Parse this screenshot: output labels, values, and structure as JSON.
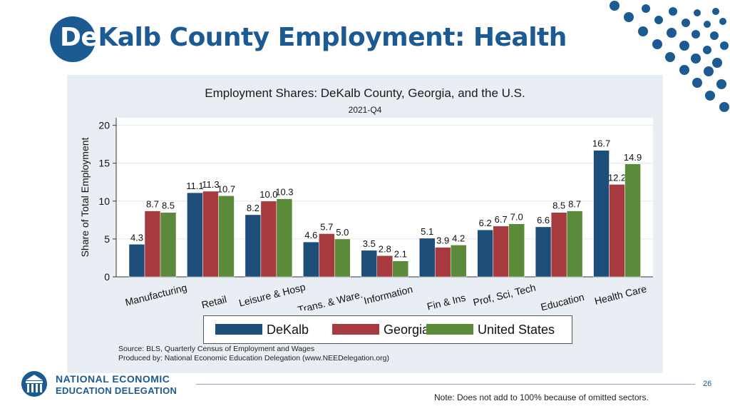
{
  "slide": {
    "title_first": "De",
    "title_rest": "Kalb County Employment: Health",
    "page_number": "26",
    "note": "Note: Does not add to 100% because of omitted sectors.",
    "logo_line1": "NATIONAL ECONOMIC",
    "logo_line2": "EDUCATION DELEGATION",
    "accent_color": "#1b5a93"
  },
  "chart_data": {
    "type": "bar",
    "title": "Employment Shares: DeKalb County, Georgia, and the U.S.",
    "subtitle": "2021-Q4",
    "ylabel": "Share of Total Employment",
    "xlabel": "",
    "ylim": [
      0,
      21
    ],
    "yticks": [
      0,
      5,
      10,
      15,
      20
    ],
    "grid": true,
    "legend_position": "bottom",
    "categories": [
      "Manufacturing",
      "Retail",
      "Leisure & Hosp",
      "Trans. & Ware.",
      "Information",
      "Fin & Ins",
      "Prof, Sci, Tech",
      "Education",
      "Health Care"
    ],
    "series": [
      {
        "name": "DeKalb",
        "color": "#1d4e79",
        "values": [
          4.3,
          11.1,
          8.2,
          4.6,
          3.5,
          5.1,
          6.2,
          6.6,
          16.7
        ]
      },
      {
        "name": "Georgia",
        "color": "#a63a3f",
        "values": [
          8.7,
          11.3,
          10.0,
          5.7,
          2.8,
          3.9,
          6.7,
          8.5,
          12.2
        ]
      },
      {
        "name": "United States",
        "color": "#5a8a3a",
        "values": [
          8.5,
          10.7,
          10.3,
          5.0,
          2.1,
          4.2,
          7.0,
          8.7,
          14.9
        ]
      }
    ],
    "source_line1": "Source: BLS, Quarterly Census of Employment and Wages",
    "source_line2": "Produced by: National Economic Education Delegation (www.NEEDelegation.org)"
  }
}
